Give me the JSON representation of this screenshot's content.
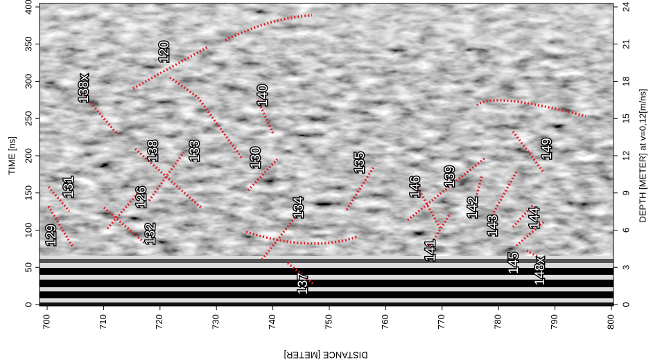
{
  "chart_data": {
    "type": "radargram",
    "xlabel": "DISTANCE [METER]",
    "ylabel": "TIME [ns]",
    "y2label": "DEPTH [METER] at v=0,12[m/ns]",
    "xlim": [
      700,
      800
    ],
    "xticks": [
      700,
      710,
      720,
      730,
      740,
      750,
      760,
      770,
      780,
      790,
      800
    ],
    "ylim": [
      0,
      400
    ],
    "yticks": [
      0,
      50,
      100,
      150,
      200,
      250,
      300,
      350,
      400
    ],
    "y2lim": [
      0,
      24
    ],
    "y2ticks": [
      0,
      3,
      6,
      9,
      12,
      15,
      18,
      21,
      24
    ],
    "annotations": [
      "129",
      "131",
      "126",
      "132",
      "138x",
      "120",
      "138",
      "133",
      "130",
      "140",
      "134",
      "137",
      "135",
      "146",
      "141",
      "139",
      "142",
      "143",
      "144",
      "145",
      "149",
      "148x"
    ]
  }
}
